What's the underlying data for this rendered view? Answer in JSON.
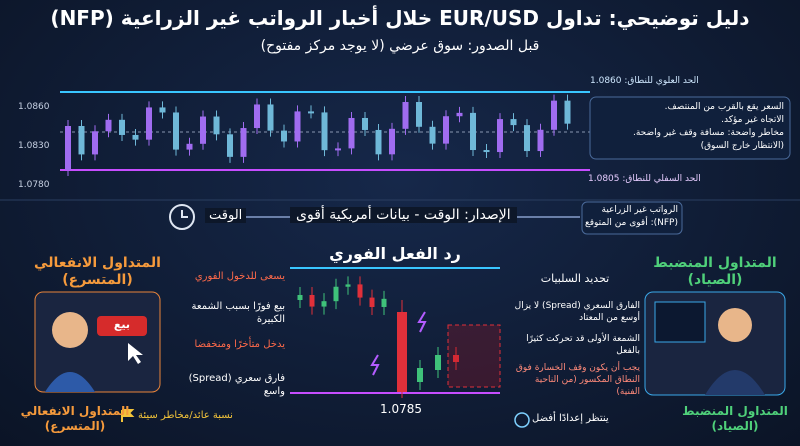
{
  "header": {
    "title": "دليل توضيحي: تداول EUR/USD خلال أخبار الرواتب غير الزراعية (NFP)",
    "subtitle": "قبل الصدور: سوق عرضي (لا يوجد مركز مفتوح)"
  },
  "range_chart": {
    "upper_label": "الحد العلوي للنطاق: 1.0860",
    "lower_label": "الحد السفلي للنطاق: 1.0805",
    "axis_labels": [
      "1.0860",
      "1.0830",
      "1.0780"
    ],
    "note": [
      "السعر يقع بالقرب من المنتصف.",
      "الاتجاه غير مؤكد.",
      "مخاطر واضحة: مسافة وقف غير واضحة.",
      "(الانتظار خارج السوق)"
    ]
  },
  "timeline": {
    "time": "الوقت",
    "release": "الإصدار: الوقت - بيانات أمريكية أقوى",
    "nfp": [
      "الرواتب غير الزراعية",
      "(NFP): أقوى من المتوقع"
    ]
  },
  "reaction": {
    "title": "رد الفعل الفوري",
    "low_label": "1.0785"
  },
  "emotional": {
    "title_top": [
      "المتداول الانفعالي",
      "(المتسرع)"
    ],
    "button": "بيع",
    "labels": [
      "يسعى للدخول الفوري",
      "بيع فورًا بسبب الشمعة الكبيرة",
      "يدخل متأخرًا ومنخفضا",
      "فارق سعري (Spread) واسع"
    ],
    "result": "نسبة عائد/مخاطر سيئة",
    "title_bottom": [
      "المتداول الانفعالي",
      "(المتسرع)"
    ]
  },
  "disciplined": {
    "title_top": [
      "المتداول المنضبط",
      "(الصياد)"
    ],
    "heading": "تحديد السلبيات",
    "labels": [
      "الفارق السعري (Spread) لا يزال أوسع من المعتاد",
      "الشمعة الأولى قد تحركت كثيرًا بالفعل",
      "يجب أن يكون وقف الخسارة فوق النطاق المكسور (من الناحية الفنية)"
    ],
    "result": "ينتظر إعدادًا أفضل",
    "title_bottom": [
      "المتداول المنضبط",
      "(الصياد)"
    ]
  }
}
